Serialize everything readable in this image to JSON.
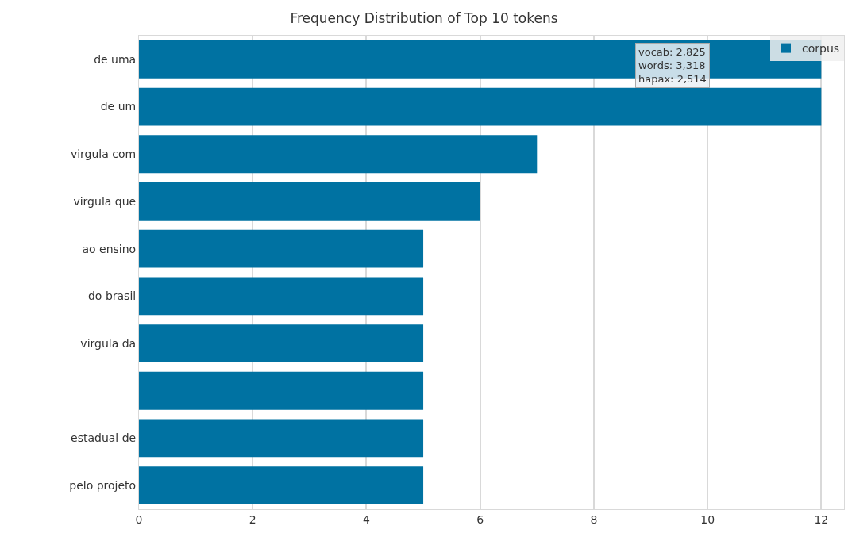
{
  "chart_data": {
    "type": "bar",
    "orientation": "horizontal",
    "title": "Frequency Distribution of Top 10 tokens",
    "categories": [
      "de uma",
      "de um",
      "virgula com",
      "virgula que",
      "ao ensino",
      "do brasil",
      "virgula da",
      null,
      "estadual de",
      "pelo projeto"
    ],
    "series": [
      {
        "name": "corpus",
        "color": "#0072a2",
        "values": [
          12,
          12,
          7,
          6,
          5,
          5,
          5,
          5,
          5,
          5
        ]
      }
    ],
    "xlim": [
      0,
      12.4
    ],
    "xticks": [
      0,
      2,
      4,
      6,
      8,
      10,
      12
    ],
    "grid": "x",
    "legend": "top right",
    "annotations": [
      "vocab: 2,825\nwords: 3,318\nhapax: 2,514"
    ]
  }
}
